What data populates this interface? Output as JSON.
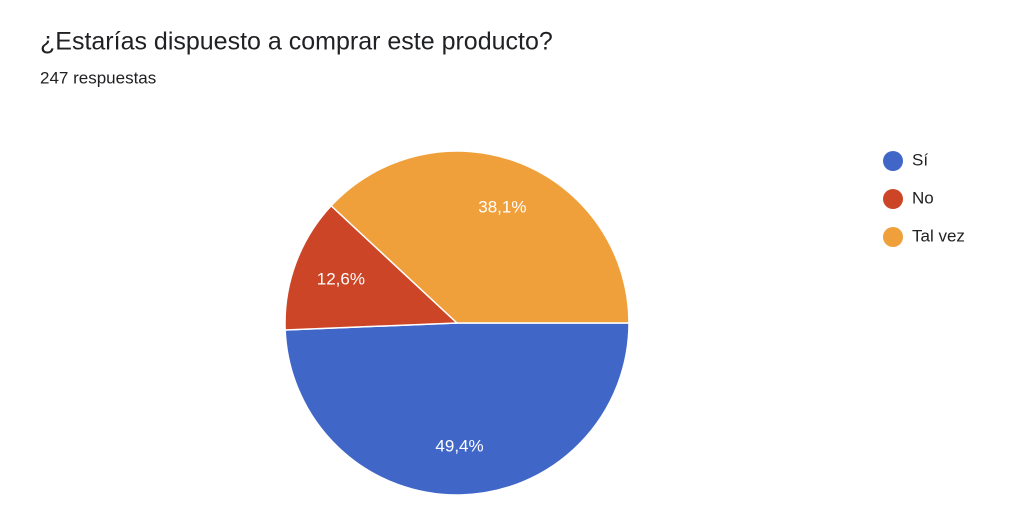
{
  "chart_data": {
    "type": "pie",
    "title": "¿Estarías dispuesto a comprar este producto?",
    "subtitle": "247 respuestas",
    "categories": [
      "Sí",
      "No",
      "Tal vez"
    ],
    "values": [
      49.4,
      12.6,
      38.1
    ],
    "value_labels": [
      "49,4%",
      "12,6%",
      "38,1%"
    ],
    "colors": [
      "#4066c8",
      "#cc4527",
      "#f0a03a"
    ],
    "legend": "right"
  }
}
